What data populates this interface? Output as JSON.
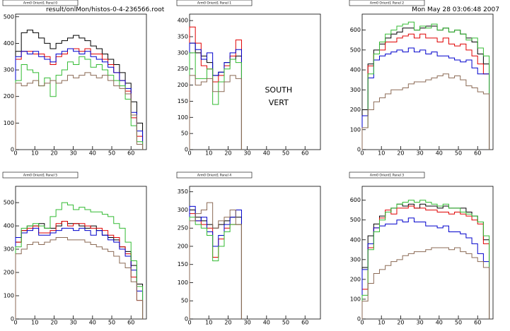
{
  "header": {
    "file": "result/onlMon/histos-0-4-236566.root",
    "date": "Mon May 28 03:06:48 2007"
  },
  "chart_data": [
    {
      "type": "histogram",
      "title": "Arm0 Orient1 Panel 0",
      "bins": [
        0,
        3,
        6,
        9,
        12,
        15,
        18,
        21,
        24,
        27,
        30,
        33,
        36,
        39,
        42,
        45,
        48,
        51,
        54,
        57,
        60,
        63,
        66
      ],
      "xlim": [
        0,
        68
      ],
      "xticks": [
        0,
        10,
        20,
        30,
        40,
        50,
        60
      ],
      "ylim": [
        0,
        510
      ],
      "yticks": [
        0,
        100,
        200,
        300,
        400,
        500
      ],
      "series": [
        {
          "color": "#000000",
          "values": [
            370,
            440,
            450,
            440,
            420,
            400,
            380,
            400,
            410,
            420,
            430,
            420,
            410,
            390,
            380,
            360,
            340,
            320,
            290,
            250,
            180,
            100
          ]
        },
        {
          "color": "#e00000",
          "values": [
            340,
            370,
            370,
            360,
            360,
            350,
            320,
            350,
            360,
            380,
            380,
            370,
            380,
            360,
            360,
            340,
            320,
            290,
            260,
            220,
            120,
            50
          ]
        },
        {
          "color": "#0000cc",
          "values": [
            350,
            370,
            360,
            370,
            350,
            340,
            330,
            360,
            370,
            380,
            370,
            360,
            370,
            350,
            340,
            330,
            310,
            290,
            260,
            230,
            140,
            70
          ]
        },
        {
          "color": "#33bb33",
          "values": [
            260,
            320,
            300,
            290,
            240,
            270,
            200,
            280,
            300,
            330,
            320,
            350,
            340,
            310,
            320,
            300,
            280,
            260,
            240,
            190,
            90,
            30
          ]
        },
        {
          "color": "#8b6a55",
          "values": [
            250,
            240,
            250,
            260,
            240,
            250,
            260,
            250,
            260,
            280,
            270,
            280,
            290,
            280,
            270,
            280,
            260,
            240,
            230,
            210,
            130,
            20
          ]
        }
      ]
    },
    {
      "type": "histogram",
      "title": "Arm0 Orient1 Panel 1",
      "annotations": [
        "SOUTH",
        "VERT"
      ],
      "bins": [
        0,
        3,
        6,
        9,
        12,
        15,
        18,
        21,
        24,
        27
      ],
      "xlim": [
        0,
        68
      ],
      "xticks": [
        0,
        10,
        20,
        30,
        40,
        50,
        60
      ],
      "ylim": [
        0,
        420
      ],
      "yticks": [
        0,
        50,
        100,
        150,
        200,
        250,
        300,
        350,
        400
      ],
      "series": [
        {
          "color": "#000000",
          "values": [
            330,
            300,
            290,
            270,
            230,
            240,
            270,
            280,
            290
          ]
        },
        {
          "color": "#e00000",
          "values": [
            380,
            330,
            260,
            250,
            210,
            230,
            260,
            290,
            340
          ]
        },
        {
          "color": "#0000cc",
          "values": [
            330,
            310,
            280,
            300,
            230,
            240,
            270,
            300,
            310
          ]
        },
        {
          "color": "#33bb33",
          "values": [
            300,
            220,
            220,
            250,
            140,
            210,
            250,
            280,
            270
          ]
        },
        {
          "color": "#8b6a55",
          "values": [
            230,
            200,
            210,
            220,
            180,
            180,
            210,
            230,
            220
          ]
        }
      ]
    },
    {
      "type": "histogram",
      "title": "Arm0 Orient1 Panel 2",
      "bins": [
        0,
        3,
        6,
        9,
        12,
        15,
        18,
        21,
        24,
        27,
        30,
        33,
        36,
        39,
        42,
        45,
        48,
        51,
        54,
        57,
        60,
        63,
        66
      ],
      "xlim": [
        0,
        68
      ],
      "xticks": [
        0,
        10,
        20,
        30,
        40,
        50,
        60
      ],
      "ylim": [
        0,
        680
      ],
      "yticks": [
        0,
        100,
        200,
        300,
        400,
        500,
        600
      ],
      "series": [
        {
          "color": "#000000",
          "values": [
            200,
            430,
            500,
            530,
            560,
            580,
            590,
            610,
            610,
            600,
            610,
            620,
            620,
            600,
            610,
            590,
            600,
            580,
            560,
            540,
            480,
            430
          ]
        },
        {
          "color": "#e00000",
          "values": [
            170,
            420,
            480,
            500,
            540,
            540,
            560,
            570,
            580,
            560,
            580,
            560,
            560,
            540,
            560,
            530,
            520,
            530,
            500,
            470,
            430,
            380
          ]
        },
        {
          "color": "#0000cc",
          "values": [
            170,
            360,
            450,
            470,
            480,
            490,
            500,
            490,
            510,
            490,
            500,
            480,
            490,
            470,
            470,
            460,
            450,
            440,
            450,
            410,
            380,
            380
          ]
        },
        {
          "color": "#33bb33",
          "values": [
            110,
            380,
            480,
            540,
            580,
            600,
            620,
            630,
            640,
            600,
            620,
            610,
            630,
            600,
            610,
            590,
            600,
            580,
            550,
            560,
            510,
            470
          ]
        },
        {
          "color": "#8b6a55",
          "values": [
            110,
            200,
            240,
            260,
            280,
            300,
            300,
            310,
            330,
            340,
            340,
            350,
            360,
            370,
            380,
            360,
            370,
            350,
            320,
            310,
            290,
            280
          ]
        }
      ]
    },
    {
      "type": "histogram",
      "title": "Arm0 Orient1 Panel 5",
      "bins": [
        0,
        3,
        6,
        9,
        12,
        15,
        18,
        21,
        24,
        27,
        30,
        33,
        36,
        39,
        42,
        45,
        48,
        51,
        54,
        57,
        60,
        63,
        66
      ],
      "xlim": [
        0,
        68
      ],
      "xticks": [
        0,
        10,
        20,
        30,
        40,
        50,
        60
      ],
      "ylim": [
        0,
        570
      ],
      "yticks": [
        0,
        100,
        200,
        300,
        400,
        500
      ],
      "series": [
        {
          "color": "#000000",
          "values": [
            330,
            380,
            400,
            400,
            410,
            390,
            390,
            400,
            420,
            410,
            410,
            400,
            390,
            400,
            380,
            360,
            350,
            340,
            310,
            290,
            230,
            150
          ]
        },
        {
          "color": "#e00000",
          "values": [
            330,
            380,
            390,
            400,
            370,
            370,
            380,
            410,
            420,
            400,
            410,
            410,
            400,
            390,
            390,
            380,
            360,
            350,
            310,
            280,
            180,
            80
          ]
        },
        {
          "color": "#0000cc",
          "values": [
            350,
            370,
            380,
            390,
            360,
            360,
            370,
            380,
            390,
            390,
            380,
            390,
            380,
            360,
            380,
            360,
            340,
            330,
            300,
            270,
            210,
            120
          ]
        },
        {
          "color": "#33bb33",
          "values": [
            310,
            390,
            400,
            410,
            400,
            390,
            440,
            470,
            500,
            490,
            470,
            480,
            470,
            460,
            460,
            450,
            440,
            410,
            390,
            330,
            250,
            140
          ]
        },
        {
          "color": "#8b6a55",
          "values": [
            280,
            300,
            320,
            330,
            320,
            330,
            340,
            350,
            350,
            340,
            340,
            340,
            330,
            320,
            310,
            300,
            290,
            270,
            240,
            220,
            160,
            80
          ]
        }
      ]
    },
    {
      "type": "histogram",
      "title": "Arm0 Orient1 Panel 4",
      "bins": [
        0,
        3,
        6,
        9,
        12,
        15,
        18,
        21,
        24,
        27
      ],
      "xlim": [
        0,
        68
      ],
      "xticks": [
        0,
        10,
        20,
        30,
        40,
        50,
        60
      ],
      "ylim": [
        0,
        365
      ],
      "yticks": [
        0,
        50,
        100,
        150,
        200,
        250,
        300,
        350
      ],
      "series": [
        {
          "color": "#000000",
          "values": [
            300,
            280,
            270,
            260,
            250,
            260,
            270,
            280,
            280
          ]
        },
        {
          "color": "#e00000",
          "values": [
            290,
            270,
            260,
            250,
            170,
            220,
            250,
            260,
            260
          ]
        },
        {
          "color": "#0000cc",
          "values": [
            310,
            270,
            280,
            240,
            200,
            230,
            260,
            280,
            300
          ]
        },
        {
          "color": "#33bb33",
          "values": [
            280,
            260,
            250,
            230,
            160,
            200,
            240,
            260,
            260
          ]
        },
        {
          "color": "#8b6a55",
          "values": [
            270,
            290,
            300,
            320,
            250,
            270,
            280,
            300,
            260
          ]
        }
      ]
    },
    {
      "type": "histogram",
      "title": "Arm0 Orient1 Panel 3",
      "bins": [
        0,
        3,
        6,
        9,
        12,
        15,
        18,
        21,
        24,
        27,
        30,
        33,
        36,
        39,
        42,
        45,
        48,
        51,
        54,
        57,
        60,
        63,
        66
      ],
      "xlim": [
        0,
        68
      ],
      "xticks": [
        0,
        10,
        20,
        30,
        40,
        50,
        60
      ],
      "ylim": [
        0,
        670
      ],
      "yticks": [
        0,
        100,
        200,
        300,
        400,
        500,
        600
      ],
      "series": [
        {
          "color": "#000000",
          "values": [
            260,
            420,
            480,
            520,
            540,
            560,
            580,
            570,
            580,
            560,
            580,
            570,
            570,
            560,
            570,
            560,
            560,
            560,
            540,
            520,
            490,
            400
          ]
        },
        {
          "color": "#e00000",
          "values": [
            150,
            360,
            460,
            510,
            550,
            530,
            560,
            560,
            570,
            560,
            560,
            550,
            550,
            540,
            540,
            530,
            540,
            530,
            520,
            500,
            480,
            380
          ]
        },
        {
          "color": "#0000cc",
          "values": [
            250,
            380,
            460,
            470,
            480,
            480,
            500,
            490,
            510,
            490,
            490,
            470,
            470,
            460,
            470,
            440,
            440,
            430,
            410,
            380,
            330,
            290
          ]
        },
        {
          "color": "#33bb33",
          "values": [
            120,
            350,
            440,
            500,
            540,
            560,
            580,
            590,
            600,
            590,
            600,
            590,
            580,
            570,
            580,
            560,
            560,
            540,
            530,
            520,
            490,
            420
          ]
        },
        {
          "color": "#8b6a55",
          "values": [
            90,
            180,
            230,
            250,
            270,
            290,
            300,
            320,
            330,
            340,
            340,
            350,
            360,
            360,
            360,
            350,
            360,
            340,
            330,
            310,
            290,
            260
          ]
        }
      ]
    }
  ]
}
